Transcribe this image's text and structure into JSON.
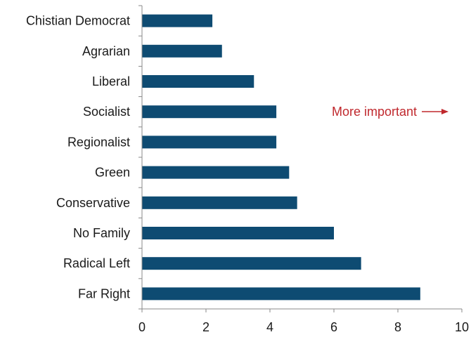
{
  "chart_data": {
    "type": "bar",
    "orientation": "horizontal",
    "categories": [
      "Chistian Democrat",
      "Agrarian",
      "Liberal",
      "Socialist",
      "Regionalist",
      "Green",
      "Conservative",
      "No Family",
      "Radical Left",
      "Far Right"
    ],
    "values": [
      2.2,
      2.5,
      3.5,
      4.2,
      4.2,
      4.6,
      4.85,
      6.0,
      6.85,
      8.7
    ],
    "xlim": [
      0,
      10
    ],
    "xticks": [
      0,
      2,
      4,
      6,
      8,
      10
    ],
    "xtick_labels": [
      "0",
      "2",
      "4",
      "6",
      "8",
      "10"
    ],
    "grid": false,
    "annotation": {
      "text": "More important",
      "color": "#c0282d"
    },
    "bar_color": "#0e4b72"
  }
}
